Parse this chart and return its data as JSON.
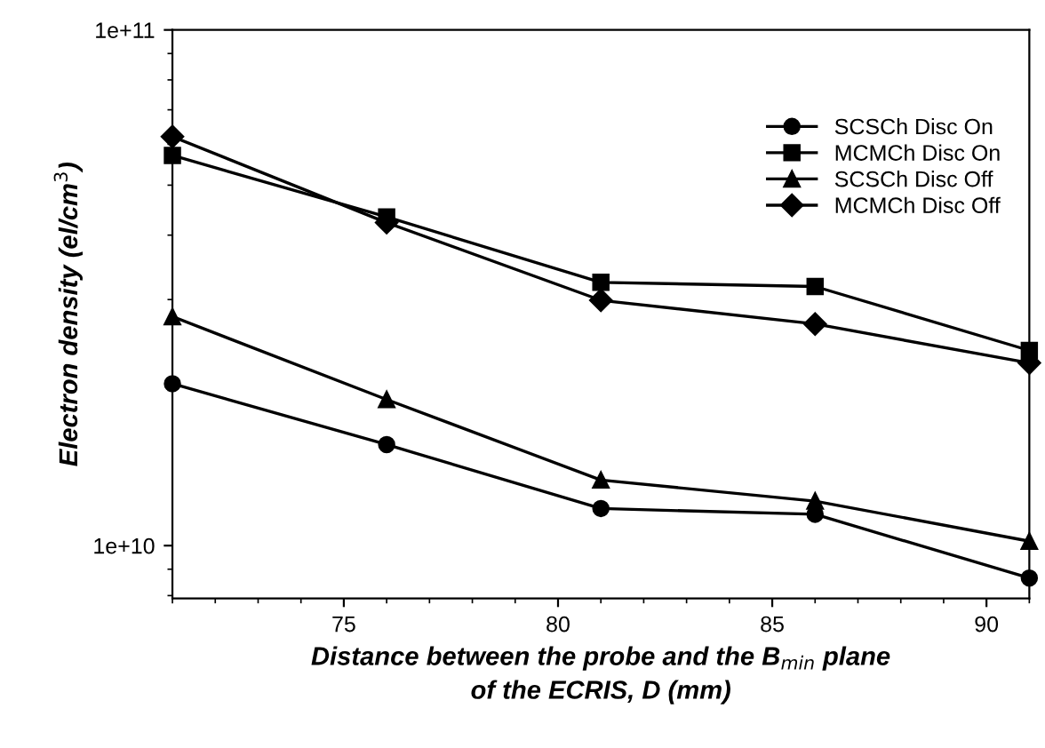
{
  "chart_data": {
    "type": "line",
    "xlabel": "Distance between the probe and the B$_{min}$ plane\nof the ECRIS, D (mm)",
    "ylabel": "Electron density (el/cm$^{3}$)",
    "x": [
      71,
      76,
      81,
      86,
      91
    ],
    "series": [
      {
        "name": "SCSCh Disc On",
        "color": "#000000",
        "marker": "circle",
        "values": [
          20600000000.0,
          15700000000.0,
          11800000000.0,
          11500000000.0,
          8650000000.0
        ]
      },
      {
        "name": "MCMCh Disc On",
        "color": "#000000",
        "marker": "square",
        "values": [
          57100000000.0,
          43400000000.0,
          32400000000.0,
          31800000000.0,
          23900000000.0
        ]
      },
      {
        "name": "SCSCh Disc Off",
        "color": "#000000",
        "marker": "triangle",
        "values": [
          27800000000.0,
          19200000000.0,
          13400000000.0,
          12200000000.0,
          10200000000.0
        ]
      },
      {
        "name": "MCMCh Disc Off",
        "color": "#000000",
        "marker": "diamond",
        "values": [
          62100000000.0,
          42300000000.0,
          29900000000.0,
          26900000000.0,
          22600000000.0
        ]
      }
    ],
    "log": "y",
    "xlim": [
      71,
      91
    ],
    "xticks": [
      75,
      80,
      85,
      90
    ],
    "ylim": [
      7900000000.0,
      100000000000.0
    ],
    "yticks": [
      {
        "value": 10000000000.0,
        "label": "1e+10"
      },
      {
        "value": 100000000000.0,
        "label": "1e+11"
      }
    ],
    "grid": false,
    "legend": "top right",
    "line_style": "solid"
  }
}
